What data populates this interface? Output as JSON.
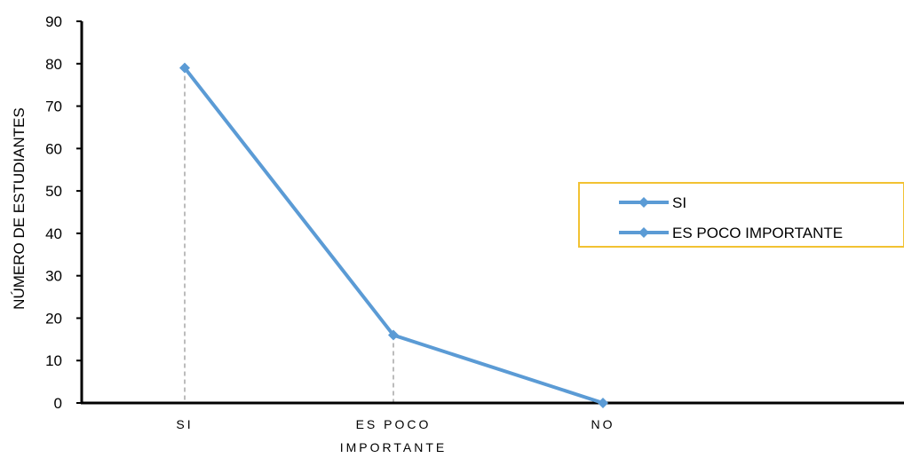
{
  "chart_data": {
    "type": "line",
    "categories": [
      "SI",
      "ES POCO IMPORTANTE",
      "NO"
    ],
    "category_label_lines": [
      [
        "SI"
      ],
      [
        "ES POCO",
        "IMPORTANTE"
      ],
      [
        "NO"
      ]
    ],
    "values": [
      79,
      16,
      0
    ],
    "ylabel": "NÚMERO DE ESTUDIANTES",
    "xlabel": "",
    "ylim": [
      0,
      90
    ],
    "yticks": [
      0,
      10,
      20,
      30,
      40,
      50,
      60,
      70,
      80,
      90
    ],
    "drop_lines": true,
    "legend": {
      "entries": [
        "SI",
        "ES POCO IMPORTANTE"
      ],
      "placement": "right"
    },
    "colors": {
      "series": "#5B9BD5",
      "legend_border": "#F2C232",
      "drop_line": "#A6A6A6",
      "axis": "#000000"
    }
  }
}
